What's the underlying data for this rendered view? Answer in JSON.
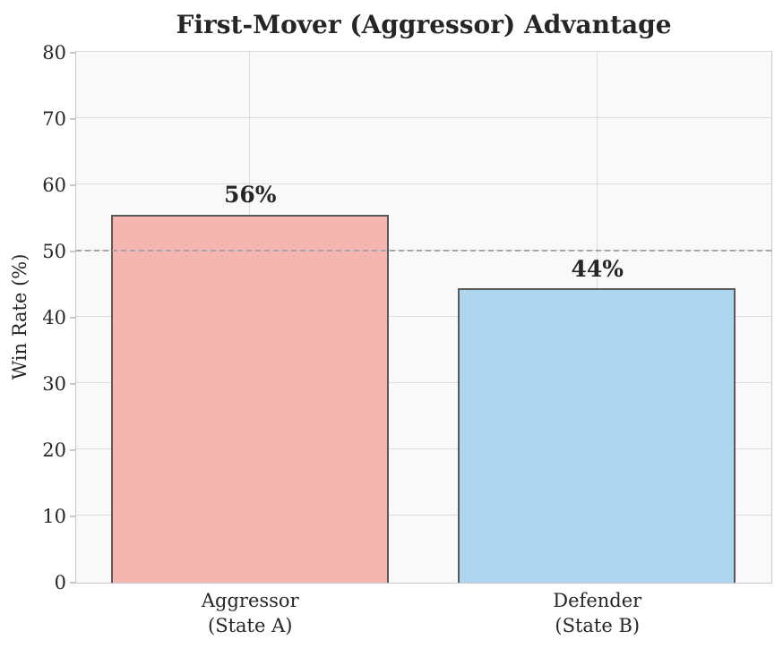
{
  "title": "First-Mover (Aggressor) Advantage",
  "chart_data": {
    "type": "bar",
    "title": "First-Mover (Aggressor) Advantage",
    "xlabel": "",
    "ylabel": "Win Rate (%)",
    "categories": [
      "Aggressor\n(State A)",
      "Defender\n(State B)"
    ],
    "category_names": [
      "aggressor-state-a",
      "defender-state-b"
    ],
    "values": [
      55.6,
      44.4
    ],
    "bar_labels": [
      "56%",
      "44%"
    ],
    "bar_colors": [
      "#f5b6b1",
      "#aed6ef"
    ],
    "bar_edge_color": "#595959",
    "ylim": [
      0,
      80
    ],
    "yticks": [
      0,
      10,
      20,
      30,
      40,
      50,
      60,
      70,
      80
    ],
    "reference_line": {
      "y": 50,
      "style": "dashed",
      "color": "#a6a6a6"
    },
    "grid": "on",
    "legend": "none",
    "plot_background": "#f9f9f9",
    "grid_color": "#dcdcdc"
  }
}
